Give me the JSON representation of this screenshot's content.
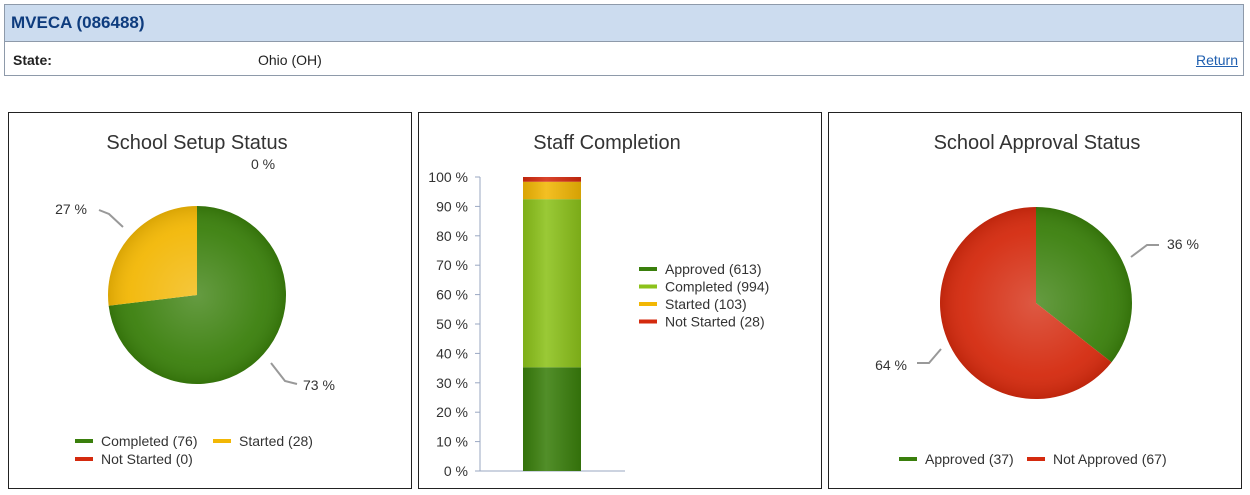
{
  "header": {
    "title": "MVECA (086488)",
    "state_label": "State:",
    "state_value": "Ohio (OH)",
    "return_label": "Return"
  },
  "colors": {
    "header_bg": "#ccdcef",
    "header_text": "#0e3c7e",
    "link": "#1f5fb0",
    "dark_green": "#3a7f0c",
    "light_green": "#8cc21b",
    "yellow": "#f2b705",
    "red": "#d42a0e"
  },
  "chart_data": [
    {
      "type": "pie",
      "title": "School Setup Status",
      "slices": [
        {
          "name": "Completed (76)",
          "value": 76,
          "pct_label": "73 %",
          "color": "#3a7f0c"
        },
        {
          "name": "Started (28)",
          "value": 28,
          "pct_label": "27 %",
          "color": "#f2b705"
        },
        {
          "name": "Not Started (0)",
          "value": 0,
          "pct_label": "0 %",
          "color": "#d42a0e"
        }
      ],
      "legend_position": "bottom"
    },
    {
      "type": "bar",
      "stacked": "percent",
      "title": "Staff Completion",
      "series": [
        {
          "name": "Approved (613)",
          "value": 613,
          "color": "#3a7f0c"
        },
        {
          "name": "Completed (994)",
          "value": 994,
          "color": "#8cc21b"
        },
        {
          "name": "Started (103)",
          "value": 103,
          "color": "#f2b705"
        },
        {
          "name": "Not Started (28)",
          "value": 28,
          "color": "#d42a0e"
        }
      ],
      "yticks": [
        "0 %",
        "10 %",
        "20 %",
        "30 %",
        "40 %",
        "50 %",
        "60 %",
        "70 %",
        "80 %",
        "90 %",
        "100 %"
      ],
      "ylim": [
        0,
        100
      ],
      "legend_position": "right"
    },
    {
      "type": "pie",
      "title": "School Approval Status",
      "slices": [
        {
          "name": "Approved (37)",
          "value": 37,
          "pct_label": "36 %",
          "color": "#3a7f0c"
        },
        {
          "name": "Not Approved (67)",
          "value": 67,
          "pct_label": "64 %",
          "color": "#d42a0e"
        }
      ],
      "legend_position": "bottom"
    }
  ]
}
